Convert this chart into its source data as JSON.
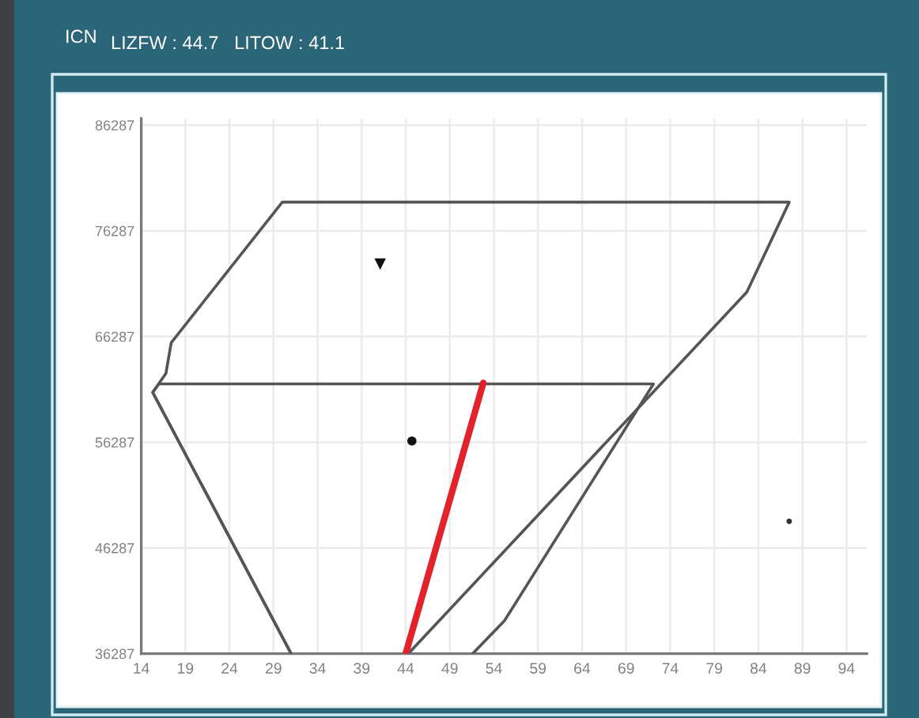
{
  "chart_data": {
    "type": "line",
    "title": "ICN",
    "subtitle": "LIZFW : 44.7   LITOW : 41.1",
    "xlim": [
      14,
      96.3
    ],
    "xticks": [
      14,
      19,
      24,
      29,
      34,
      39,
      44,
      49,
      54,
      59,
      64,
      69,
      74,
      79,
      84,
      89,
      94
    ],
    "ylim": [
      36287,
      86900
    ],
    "yticks": [
      36287,
      46287,
      56287,
      66287,
      76287,
      86287
    ],
    "grid": true,
    "series": [
      {
        "color": "#555555",
        "x": [
          31.0,
          15.3,
          16.8,
          17.4,
          30.0,
          87.5,
          82.7,
          44.3
        ],
        "values": [
          36287,
          61000,
          62800,
          65700,
          79000,
          79000,
          70500,
          36287
        ]
      },
      {
        "color": "#555555",
        "x": [
          31.0,
          15.3,
          16.0,
          72.1,
          55.2,
          51.6
        ],
        "values": [
          36287,
          61000,
          61800,
          61800,
          39400,
          36287
        ]
      },
      {
        "color": "#e3232b",
        "x": [
          44.0,
          52.8
        ],
        "values": [
          36287,
          61900
        ]
      },
      {
        "type": "scatter",
        "marker": "triangle",
        "color": "#111111",
        "x": [
          41.1
        ],
        "values": [
          73200
        ]
      },
      {
        "type": "scatter",
        "marker": "circle",
        "color": "#111111",
        "x": [
          44.7
        ],
        "values": [
          56400
        ]
      },
      {
        "type": "scatter",
        "marker": "circle",
        "color": "#333333",
        "x": [
          87.5
        ],
        "values": [
          48800
        ]
      }
    ]
  }
}
